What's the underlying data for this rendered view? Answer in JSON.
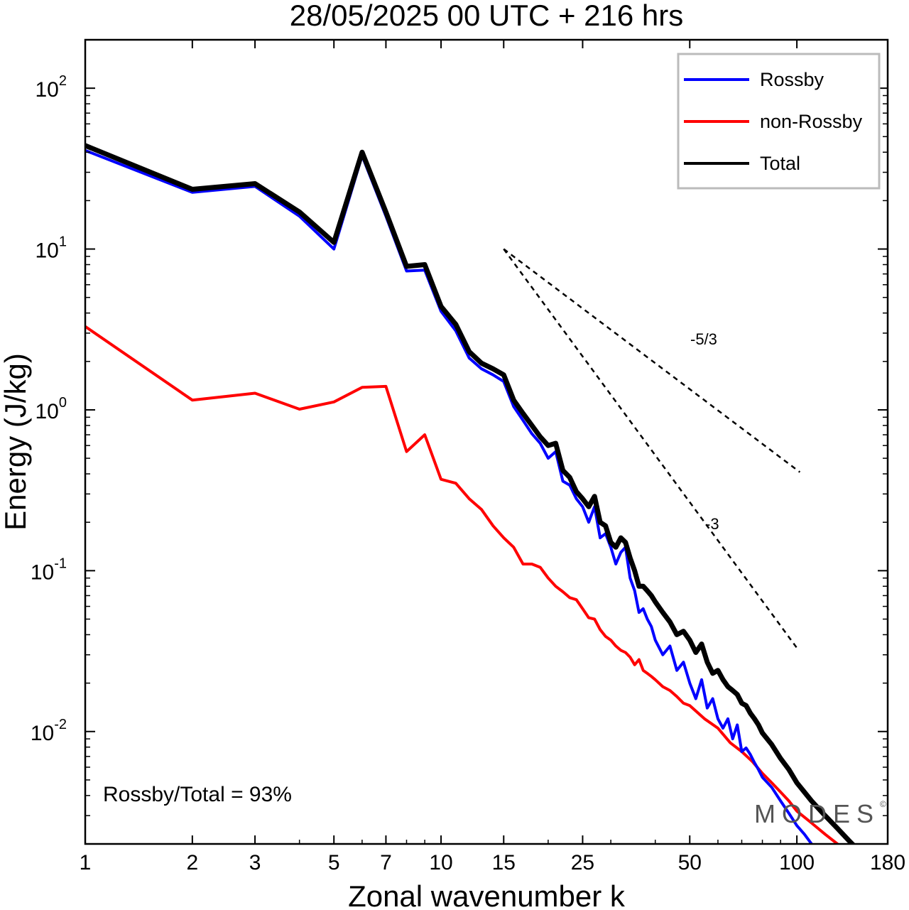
{
  "chart_data": {
    "type": "line",
    "title": "28/05/2025  00 UTC  + 216 hrs",
    "xlabel": "Zonal wavenumber k",
    "ylabel": "Energy (J/kg)",
    "x_scale": "log",
    "y_scale": "log",
    "xlim": [
      1,
      180
    ],
    "ylim": [
      0.002,
      200
    ],
    "x_ticks": [
      {
        "value": 1,
        "label": "1"
      },
      {
        "value": 2,
        "label": "2"
      },
      {
        "value": 3,
        "label": "3"
      },
      {
        "value": 5,
        "label": "5"
      },
      {
        "value": 7,
        "label": "7"
      },
      {
        "value": 10,
        "label": "10"
      },
      {
        "value": 15,
        "label": "15"
      },
      {
        "value": 25,
        "label": "25"
      },
      {
        "value": 50,
        "label": "50"
      },
      {
        "value": 100,
        "label": "100"
      },
      {
        "value": 180,
        "label": "180"
      }
    ],
    "y_ticks": [
      {
        "value": 0.01,
        "base": "10",
        "exp": "-2"
      },
      {
        "value": 0.1,
        "base": "10",
        "exp": "-1"
      },
      {
        "value": 1,
        "base": "10",
        "exp": "0"
      },
      {
        "value": 10,
        "base": "10",
        "exp": "1"
      },
      {
        "value": 100,
        "base": "10",
        "exp": "2"
      }
    ],
    "grid": false,
    "legend_position": "top-right",
    "series": [
      {
        "name": "Rossby",
        "color": "#0000ff",
        "x": [
          1,
          2,
          3,
          4,
          5,
          6,
          7,
          8,
          9,
          10,
          11,
          12,
          13,
          14,
          15,
          16,
          17,
          18,
          19,
          20,
          21,
          22,
          23,
          24,
          25,
          26,
          27,
          28,
          29,
          30,
          31,
          32,
          33,
          34,
          35,
          36,
          37,
          38,
          39,
          40,
          42,
          44,
          46,
          48,
          50,
          52,
          54,
          56,
          58,
          60,
          62,
          64,
          66,
          68,
          70,
          72,
          74,
          76,
          78,
          80,
          85,
          90,
          95,
          100,
          105,
          110
        ],
        "values": [
          41,
          22.5,
          24.5,
          16,
          10,
          38,
          16,
          7.3,
          7.4,
          4.1,
          3.1,
          2.1,
          1.8,
          1.65,
          1.5,
          1.05,
          0.86,
          0.71,
          0.62,
          0.5,
          0.55,
          0.36,
          0.34,
          0.28,
          0.25,
          0.2,
          0.25,
          0.16,
          0.17,
          0.14,
          0.11,
          0.13,
          0.14,
          0.09,
          0.075,
          0.055,
          0.058,
          0.05,
          0.045,
          0.037,
          0.03,
          0.034,
          0.024,
          0.027,
          0.02,
          0.016,
          0.021,
          0.014,
          0.016,
          0.012,
          0.0105,
          0.012,
          0.009,
          0.011,
          0.0075,
          0.0079,
          0.0072,
          0.0064,
          0.0058,
          0.0052,
          0.0045,
          0.0037,
          0.0031,
          0.0026,
          0.0023,
          0.002
        ]
      },
      {
        "name": "non-Rossby",
        "color": "#ff0000",
        "x": [
          1,
          2,
          3,
          4,
          5,
          6,
          7,
          8,
          9,
          10,
          11,
          12,
          13,
          14,
          15,
          16,
          17,
          18,
          19,
          20,
          21,
          22,
          23,
          24,
          25,
          26,
          27,
          28,
          29,
          30,
          31,
          32,
          33,
          34,
          35,
          36,
          37,
          38,
          39,
          40,
          42,
          44,
          46,
          48,
          50,
          55,
          60,
          65,
          70,
          75,
          80,
          85,
          90,
          95,
          100,
          110,
          120,
          130
        ],
        "values": [
          3.3,
          1.15,
          1.27,
          1.01,
          1.12,
          1.38,
          1.4,
          0.55,
          0.7,
          0.37,
          0.35,
          0.28,
          0.24,
          0.19,
          0.16,
          0.14,
          0.11,
          0.11,
          0.105,
          0.09,
          0.08,
          0.074,
          0.068,
          0.066,
          0.058,
          0.051,
          0.05,
          0.043,
          0.039,
          0.037,
          0.034,
          0.032,
          0.031,
          0.029,
          0.026,
          0.028,
          0.024,
          0.023,
          0.022,
          0.021,
          0.019,
          0.018,
          0.0165,
          0.015,
          0.0145,
          0.012,
          0.0105,
          0.0085,
          0.0075,
          0.0065,
          0.0055,
          0.0048,
          0.0042,
          0.0037,
          0.0032,
          0.0027,
          0.0023,
          0.002
        ]
      },
      {
        "name": "Total",
        "color": "#000000",
        "x": [
          1,
          2,
          3,
          4,
          5,
          6,
          7,
          8,
          9,
          10,
          11,
          12,
          13,
          14,
          15,
          16,
          17,
          18,
          19,
          20,
          21,
          22,
          23,
          24,
          25,
          26,
          27,
          28,
          29,
          30,
          31,
          32,
          33,
          34,
          35,
          36,
          37,
          38,
          39,
          40,
          42,
          44,
          46,
          48,
          50,
          52,
          54,
          56,
          58,
          60,
          62,
          64,
          66,
          68,
          70,
          72,
          74,
          76,
          78,
          80,
          85,
          90,
          95,
          100,
          105,
          110,
          120,
          130,
          140,
          150
        ],
        "values": [
          44,
          23.5,
          25.5,
          17,
          11,
          40,
          17,
          7.8,
          8,
          4.4,
          3.4,
          2.3,
          1.95,
          1.8,
          1.65,
          1.15,
          0.95,
          0.8,
          0.68,
          0.6,
          0.62,
          0.42,
          0.38,
          0.31,
          0.28,
          0.25,
          0.29,
          0.2,
          0.19,
          0.15,
          0.14,
          0.16,
          0.15,
          0.12,
          0.1,
          0.08,
          0.08,
          0.075,
          0.07,
          0.064,
          0.055,
          0.048,
          0.04,
          0.042,
          0.037,
          0.031,
          0.035,
          0.027,
          0.023,
          0.024,
          0.021,
          0.019,
          0.018,
          0.017,
          0.015,
          0.0145,
          0.013,
          0.012,
          0.011,
          0.0098,
          0.0083,
          0.0068,
          0.0058,
          0.0048,
          0.0042,
          0.0037,
          0.003,
          0.0025,
          0.0021,
          0.0018
        ]
      }
    ],
    "reference_lines": [
      {
        "label": "-5/3",
        "x_start": 15,
        "y_start": 10,
        "x_end": 102,
        "y_end": 0.41
      },
      {
        "label": "-3",
        "x_start": 15,
        "y_start": 10,
        "x_end": 100,
        "y_end": 0.0331
      }
    ],
    "annotation": "Rossby/Total = 93%",
    "watermark": "MODES",
    "watermark_symbol": "©"
  }
}
